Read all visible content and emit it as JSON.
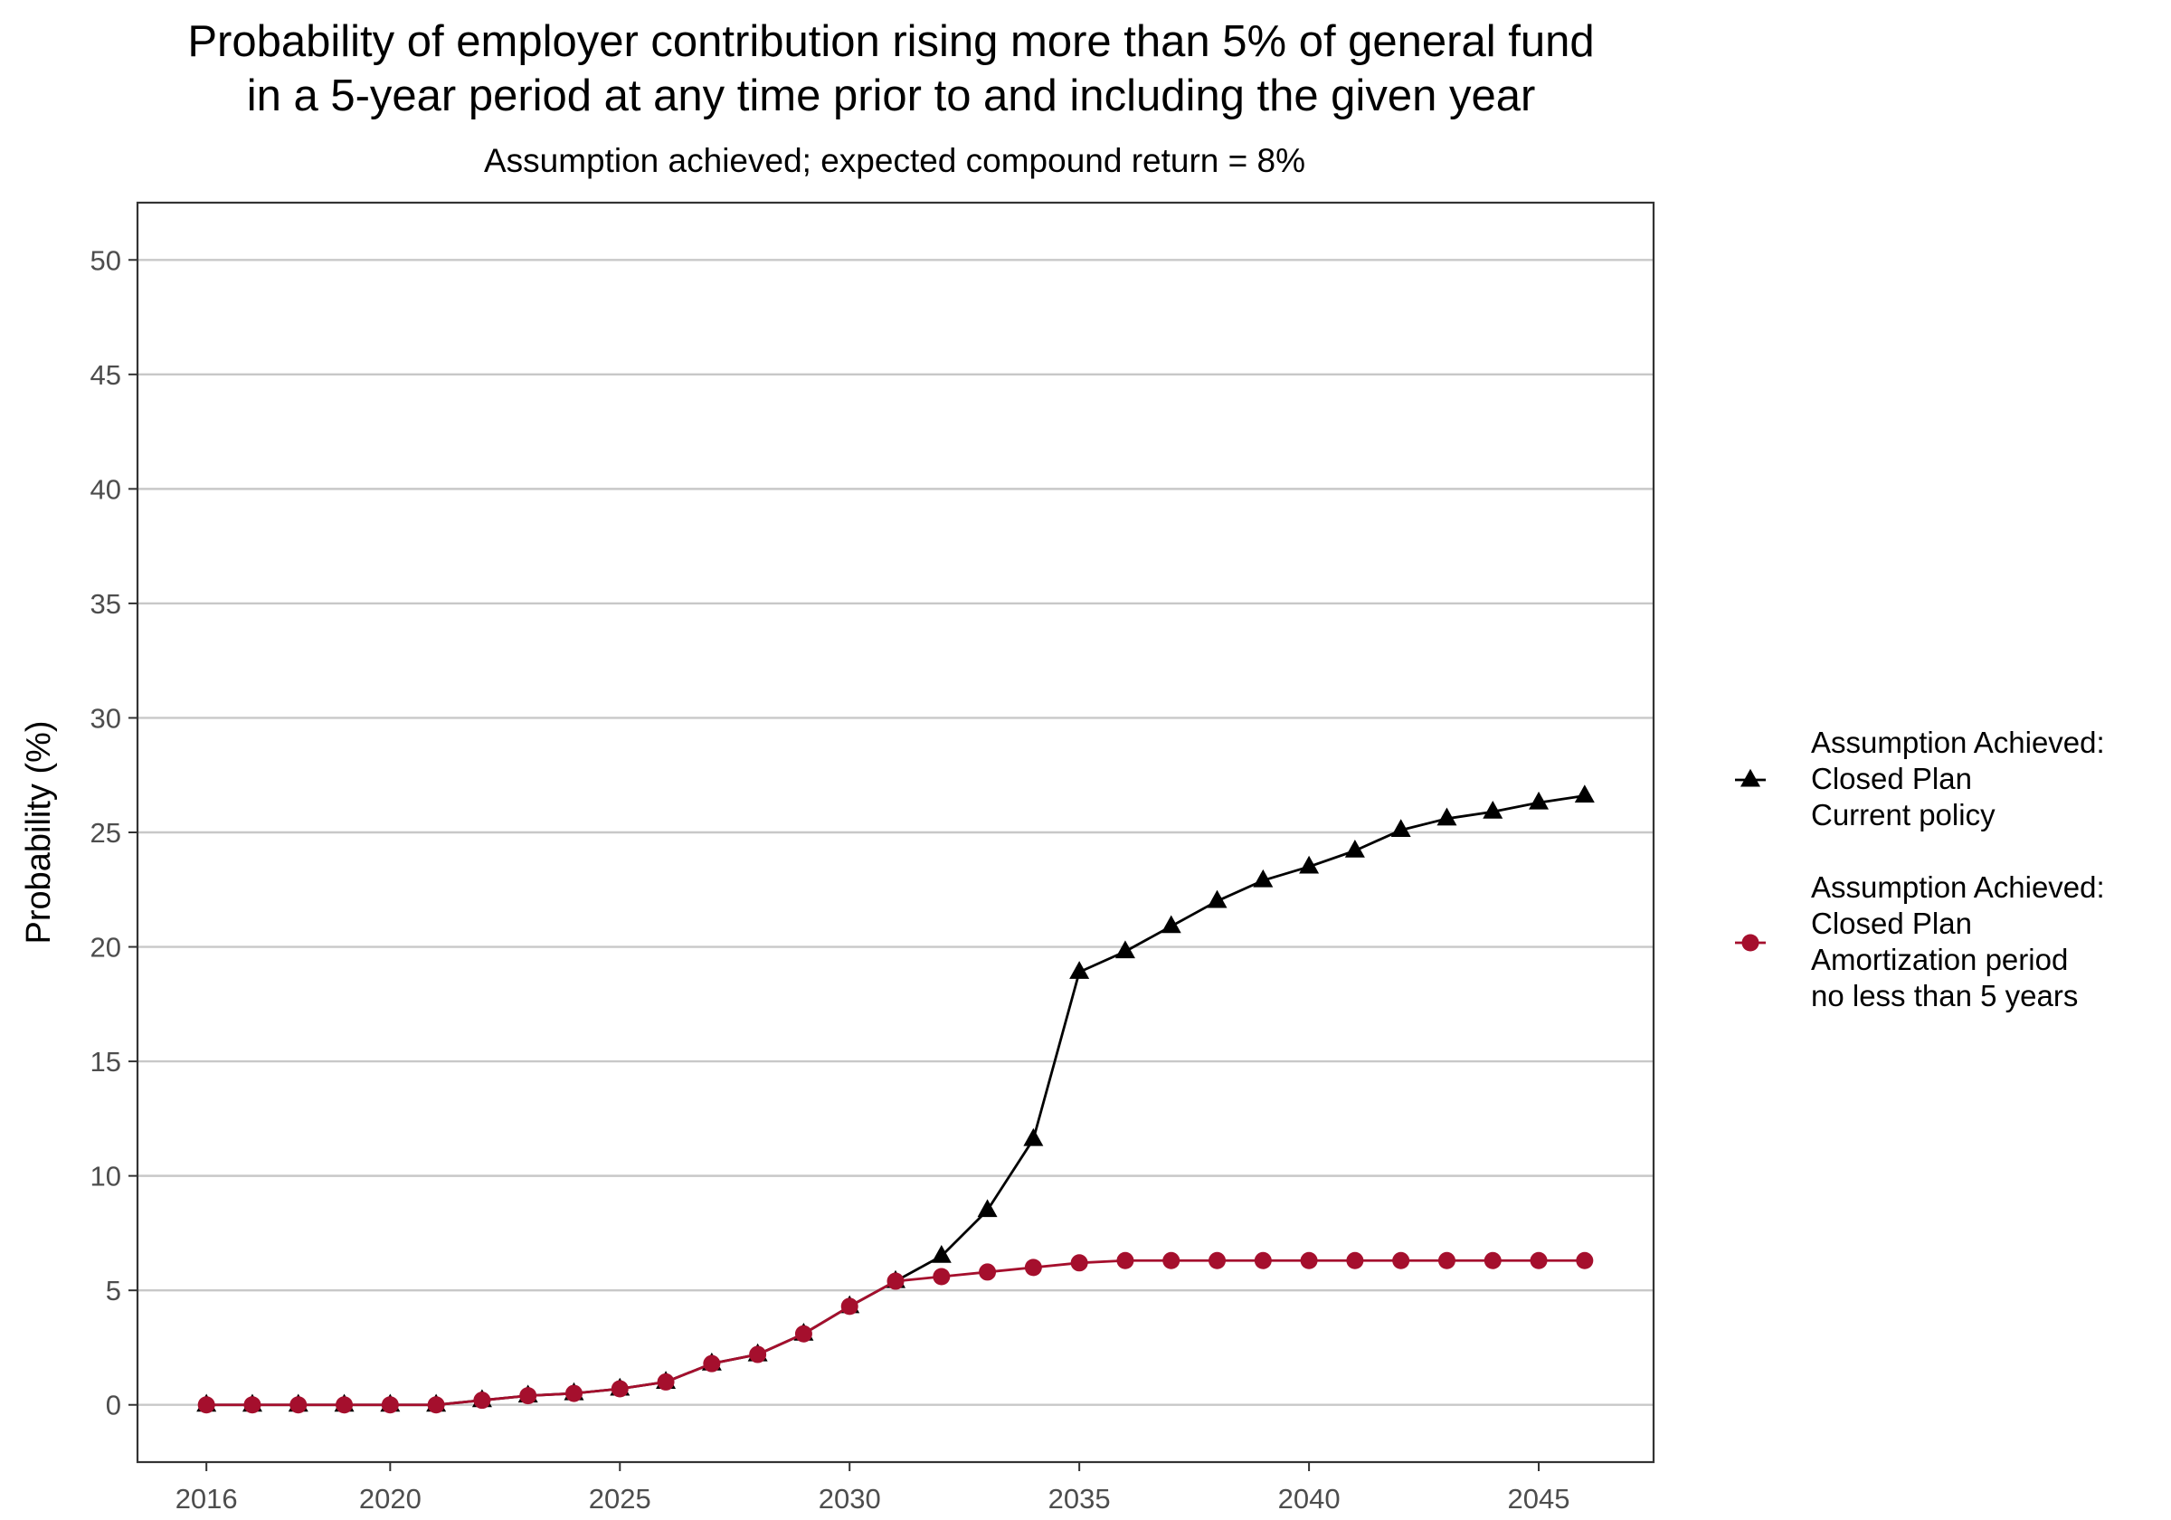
{
  "chart_data": {
    "type": "line",
    "title_lines": [
      "Probability of employer contribution rising more than 5% of general fund",
      "in a 5-year period at any time prior to and including the given year"
    ],
    "subtitle": "Assumption achieved; expected compound return = 8%",
    "xlabel": "",
    "ylabel": "Probability (%)",
    "x": [
      2016,
      2017,
      2018,
      2019,
      2020,
      2021,
      2022,
      2023,
      2024,
      2025,
      2026,
      2027,
      2028,
      2029,
      2030,
      2031,
      2032,
      2033,
      2034,
      2035,
      2036,
      2037,
      2038,
      2039,
      2040,
      2041,
      2042,
      2043,
      2044,
      2045,
      2046
    ],
    "xlim": [
      2014.5,
      2047.5
    ],
    "ylim": [
      -2.5,
      52.5
    ],
    "x_ticks": [
      2016,
      2020,
      2025,
      2030,
      2035,
      2040,
      2045
    ],
    "x_tick_labels": [
      "2016",
      "2020",
      "2025",
      "2030",
      "2035",
      "2040",
      "2045"
    ],
    "y_ticks": [
      0,
      5,
      10,
      15,
      20,
      25,
      30,
      35,
      40,
      45,
      50
    ],
    "y_tick_labels": [
      "0",
      "5",
      "10",
      "15",
      "20",
      "25",
      "30",
      "35",
      "40",
      "45",
      "50"
    ],
    "grid": "horizontal major",
    "legend_position": "right",
    "series": [
      {
        "name_lines": [
          "Assumption Achieved:",
          "Closed Plan",
          "Current policy"
        ],
        "color": "#000000",
        "marker": "triangle",
        "values": [
          0,
          0,
          0,
          0,
          0,
          0,
          0.2,
          0.4,
          0.5,
          0.7,
          1.0,
          1.8,
          2.2,
          3.1,
          4.3,
          5.4,
          6.5,
          8.5,
          11.6,
          18.9,
          19.8,
          20.9,
          22.0,
          22.9,
          23.5,
          24.2,
          25.1,
          25.6,
          25.9,
          26.3,
          26.6
        ]
      },
      {
        "name_lines": [
          "Assumption Achieved:",
          "Closed Plan",
          "Amortization period",
          "no less than 5 years"
        ],
        "color": "#a50f2d",
        "marker": "circle",
        "values": [
          0,
          0,
          0,
          0,
          0,
          0,
          0.2,
          0.4,
          0.5,
          0.7,
          1.0,
          1.8,
          2.2,
          3.1,
          4.3,
          5.4,
          5.6,
          5.8,
          6.0,
          6.2,
          6.3,
          6.3,
          6.3,
          6.3,
          6.3,
          6.3,
          6.3,
          6.3,
          6.3,
          6.3,
          6.3
        ]
      }
    ]
  }
}
